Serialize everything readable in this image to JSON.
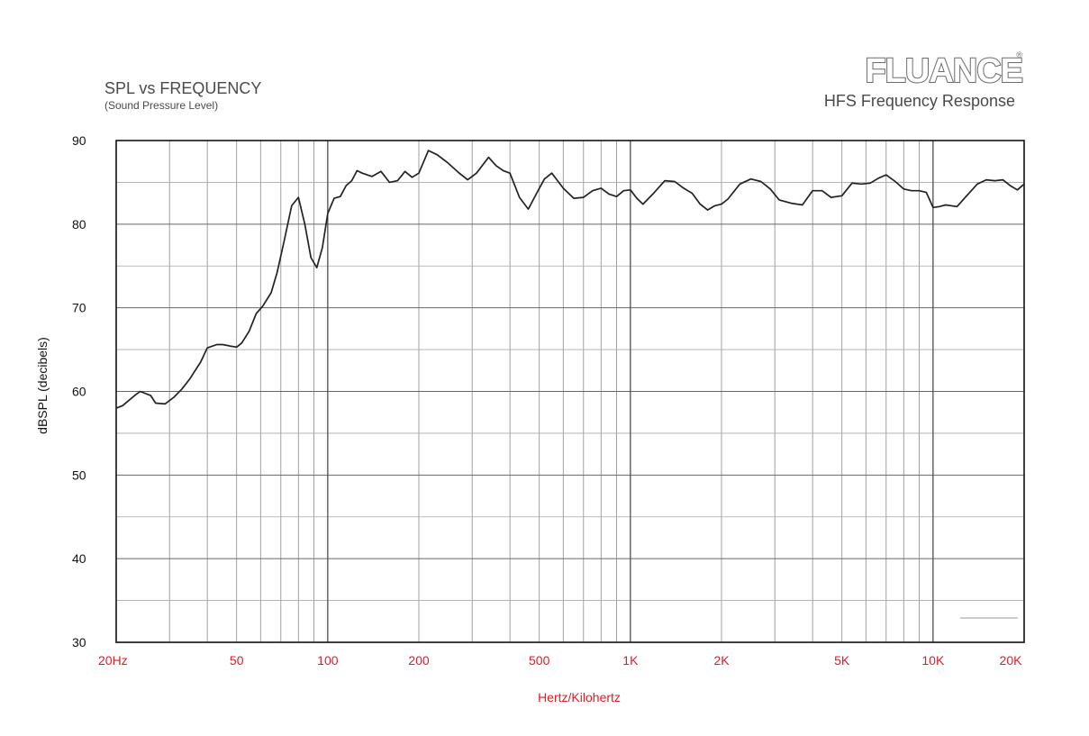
{
  "header": {
    "title": "SPL vs FREQUENCY",
    "subtitle": "(Sound Pressure Level)",
    "brand": "FLUANCE",
    "brand_mark": "®",
    "response_title": "HFS Frequency Response"
  },
  "colors": {
    "tick_x": "#e31b23",
    "curve": "#222222",
    "grid": "#8a8a8a"
  },
  "chart_data": {
    "type": "line",
    "title": "SPL vs FREQUENCY",
    "subtitle": "(Sound Pressure Level)",
    "xlabel": "Hertz/Kilohertz",
    "ylabel": "dBSPL (decibels)",
    "x_scale": "log",
    "xlim": [
      20,
      20000
    ],
    "ylim": [
      30,
      90
    ],
    "grid": true,
    "x_ticks": [
      {
        "value": 20,
        "label": "20Hz"
      },
      {
        "value": 50,
        "label": "50"
      },
      {
        "value": 100,
        "label": "100"
      },
      {
        "value": 200,
        "label": "200"
      },
      {
        "value": 500,
        "label": "500"
      },
      {
        "value": 1000,
        "label": "1K"
      },
      {
        "value": 2000,
        "label": "2K"
      },
      {
        "value": 5000,
        "label": "5K"
      },
      {
        "value": 10000,
        "label": "10K"
      },
      {
        "value": 20000,
        "label": "20K"
      }
    ],
    "y_ticks": [
      {
        "value": 90,
        "label": "90"
      },
      {
        "value": 80,
        "label": "80"
      },
      {
        "value": 70,
        "label": "70"
      },
      {
        "value": 60,
        "label": "60"
      },
      {
        "value": 50,
        "label": "50"
      },
      {
        "value": 40,
        "label": "40"
      },
      {
        "value": 30,
        "label": "30"
      }
    ],
    "series": [
      {
        "x": [
          20,
          21,
          23,
          24,
          26,
          27,
          29,
          31,
          33,
          35,
          38,
          40,
          43,
          45,
          48,
          50,
          52,
          55,
          58,
          61,
          65,
          68,
          72,
          76,
          80,
          84,
          88,
          92,
          96,
          100,
          105,
          110,
          115,
          120,
          125,
          130,
          140,
          150,
          160,
          170,
          180,
          190,
          200,
          215,
          230,
          250,
          270,
          290,
          310,
          340,
          360,
          380,
          400,
          430,
          460,
          490,
          520,
          550,
          600,
          650,
          700,
          750,
          800,
          850,
          900,
          950,
          1000,
          1050,
          1100,
          1200,
          1300,
          1400,
          1500,
          1600,
          1700,
          1800,
          1900,
          2000,
          2100,
          2300,
          2500,
          2700,
          2900,
          3100,
          3400,
          3700,
          4000,
          4300,
          4600,
          5000,
          5400,
          5800,
          6200,
          6600,
          7000,
          7500,
          8000,
          8500,
          9000,
          9500,
          10000,
          10500,
          11000,
          12000,
          13000,
          14000,
          15000,
          16000,
          17000,
          18000,
          19000,
          20000
        ],
        "y": [
          58,
          58.3,
          59.5,
          60,
          59.5,
          58.6,
          58.5,
          59.3,
          60.3,
          61.5,
          63.5,
          65.2,
          65.6,
          65.6,
          65.4,
          65.3,
          65.8,
          67.2,
          69.3,
          70.2,
          71.8,
          74.2,
          78.2,
          82.2,
          83.2,
          80,
          76,
          74.8,
          77.2,
          81.3,
          83.1,
          83.3,
          84.6,
          85.2,
          86.4,
          86.1,
          85.7,
          86.3,
          85,
          85.2,
          86.3,
          85.6,
          86.1,
          88.8,
          88.3,
          87.3,
          86.2,
          85.3,
          86.1,
          88,
          87,
          86.4,
          86.1,
          83.2,
          81.8,
          83.7,
          85.4,
          86.1,
          84.3,
          83.1,
          83.2,
          84,
          84.3,
          83.6,
          83.3,
          84,
          84.1,
          83.1,
          82.4,
          83.8,
          85.2,
          85.1,
          84.3,
          83.7,
          82.4,
          81.7,
          82.2,
          82.4,
          83,
          84.8,
          85.4,
          85.1,
          84.2,
          82.9,
          82.5,
          82.3,
          84,
          84,
          83.2,
          83.4,
          84.9,
          84.8,
          84.9,
          85.5,
          85.9,
          85.1,
          84.2,
          84,
          84,
          83.8,
          82,
          82.1,
          82.3,
          82.1,
          83.5,
          84.8,
          85.3,
          85.2,
          85.3,
          84.6,
          84.1,
          84.8
        ]
      }
    ]
  }
}
